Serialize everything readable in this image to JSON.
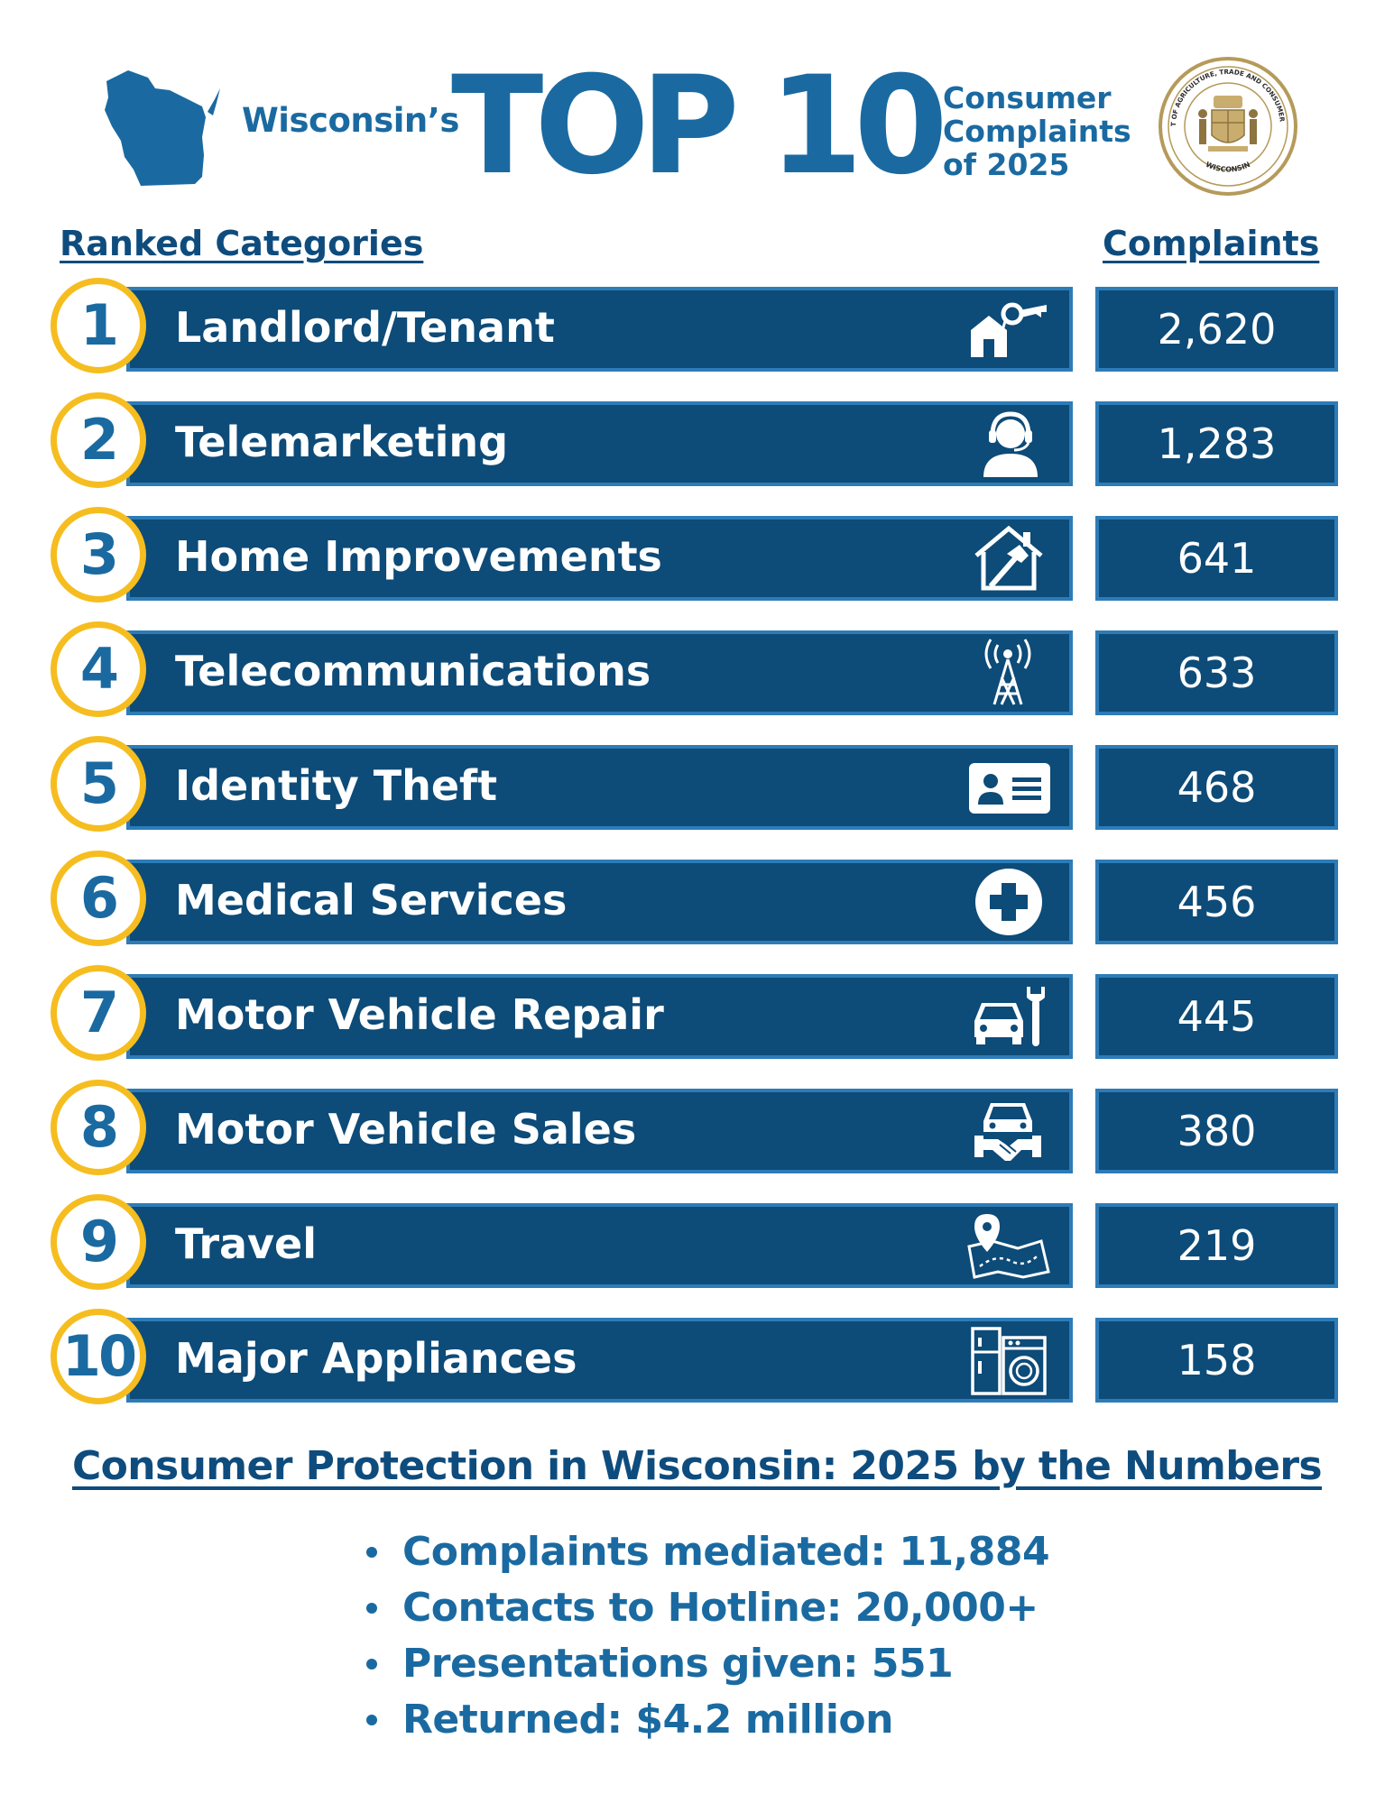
{
  "header": {
    "state_label": "Wisconsin’s",
    "big_title": "TOP 10",
    "subtitle_line1": "Consumer",
    "subtitle_line2": "Complaints",
    "subtitle_line3": "of 2025",
    "seal_top_text": "DEPARTMENT OF AGRICULTURE, TRADE AND CONSUMER PROTECTION",
    "seal_bottom_text": "WISCONSIN"
  },
  "columns": {
    "left_heading": "Ranked Categories",
    "right_heading": "Complaints"
  },
  "categories": [
    {
      "rank": "1",
      "name": "Landlord/Tenant",
      "count": "2,620",
      "icon": "house-key-icon"
    },
    {
      "rank": "2",
      "name": "Telemarketing",
      "count": "1,283",
      "icon": "headset-agent-icon"
    },
    {
      "rank": "3",
      "name": "Home Improvements",
      "count": "641",
      "icon": "house-hammer-icon"
    },
    {
      "rank": "4",
      "name": "Telecommunications",
      "count": "633",
      "icon": "radio-tower-icon"
    },
    {
      "rank": "5",
      "name": "Identity Theft",
      "count": "468",
      "icon": "id-card-icon"
    },
    {
      "rank": "6",
      "name": "Medical Services",
      "count": "456",
      "icon": "medical-cross-icon"
    },
    {
      "rank": "7",
      "name": "Motor Vehicle Repair",
      "count": "445",
      "icon": "car-wrench-icon"
    },
    {
      "rank": "8",
      "name": "Motor Vehicle Sales",
      "count": "380",
      "icon": "car-handshake-icon"
    },
    {
      "rank": "9",
      "name": "Travel",
      "count": "219",
      "icon": "map-pin-icon"
    },
    {
      "rank": "10",
      "name": "Major Appliances",
      "count": "158",
      "icon": "appliances-icon"
    }
  ],
  "footer": {
    "title": "Consumer Protection in Wisconsin: 2025 by the Numbers",
    "stats": [
      "Complaints mediated: 11,884",
      "Contacts to Hotline: 20,000+",
      "Presentations given: 551",
      "Returned: $4.2 million"
    ]
  },
  "colors": {
    "bar_fill": "#0d4b78",
    "bar_border": "#2d7cb8",
    "accent_blue": "#1a6aa1",
    "badge_ring": "#f5bd1f",
    "heading_blue": "#0e4c7e"
  }
}
